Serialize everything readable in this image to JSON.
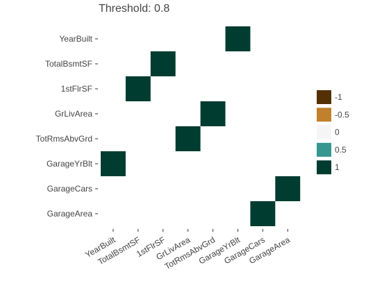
{
  "chart_data": {
    "type": "heatmap",
    "title": "Threshold: 0.8",
    "x_categories": [
      "YearBuilt",
      "TotalBsmtSF",
      "1stFlrSF",
      "GrLivArea",
      "TotRmsAbvGrd",
      "GarageYrBlt",
      "GarageCars",
      "GarageArea"
    ],
    "y_categories": [
      "YearBuilt",
      "TotalBsmtSF",
      "1stFlrSF",
      "GrLivArea",
      "TotRmsAbvGrd",
      "GarageYrBlt",
      "GarageCars",
      "GarageArea"
    ],
    "cells": [
      {
        "x": "GarageYrBlt",
        "y": "YearBuilt",
        "value": 1
      },
      {
        "x": "1stFlrSF",
        "y": "TotalBsmtSF",
        "value": 1
      },
      {
        "x": "TotalBsmtSF",
        "y": "1stFlrSF",
        "value": 1
      },
      {
        "x": "TotRmsAbvGrd",
        "y": "GrLivArea",
        "value": 1
      },
      {
        "x": "GrLivArea",
        "y": "TotRmsAbvGrd",
        "value": 1
      },
      {
        "x": "YearBuilt",
        "y": "GarageYrBlt",
        "value": 1
      },
      {
        "x": "GarageArea",
        "y": "GarageCars",
        "value": 1
      },
      {
        "x": "GarageCars",
        "y": "GarageArea",
        "value": 1
      }
    ],
    "legend": {
      "placement": "right",
      "entries": [
        {
          "label": "-1",
          "value": -1,
          "color": "#543005"
        },
        {
          "label": "-0.5",
          "value": -0.5,
          "color": "#bf812d"
        },
        {
          "label": "0",
          "value": 0,
          "color": "#f5f5f5"
        },
        {
          "label": "0.5",
          "value": 0.5,
          "color": "#35978f"
        },
        {
          "label": "1",
          "value": 1,
          "color": "#003c30"
        }
      ]
    },
    "grid": false
  }
}
